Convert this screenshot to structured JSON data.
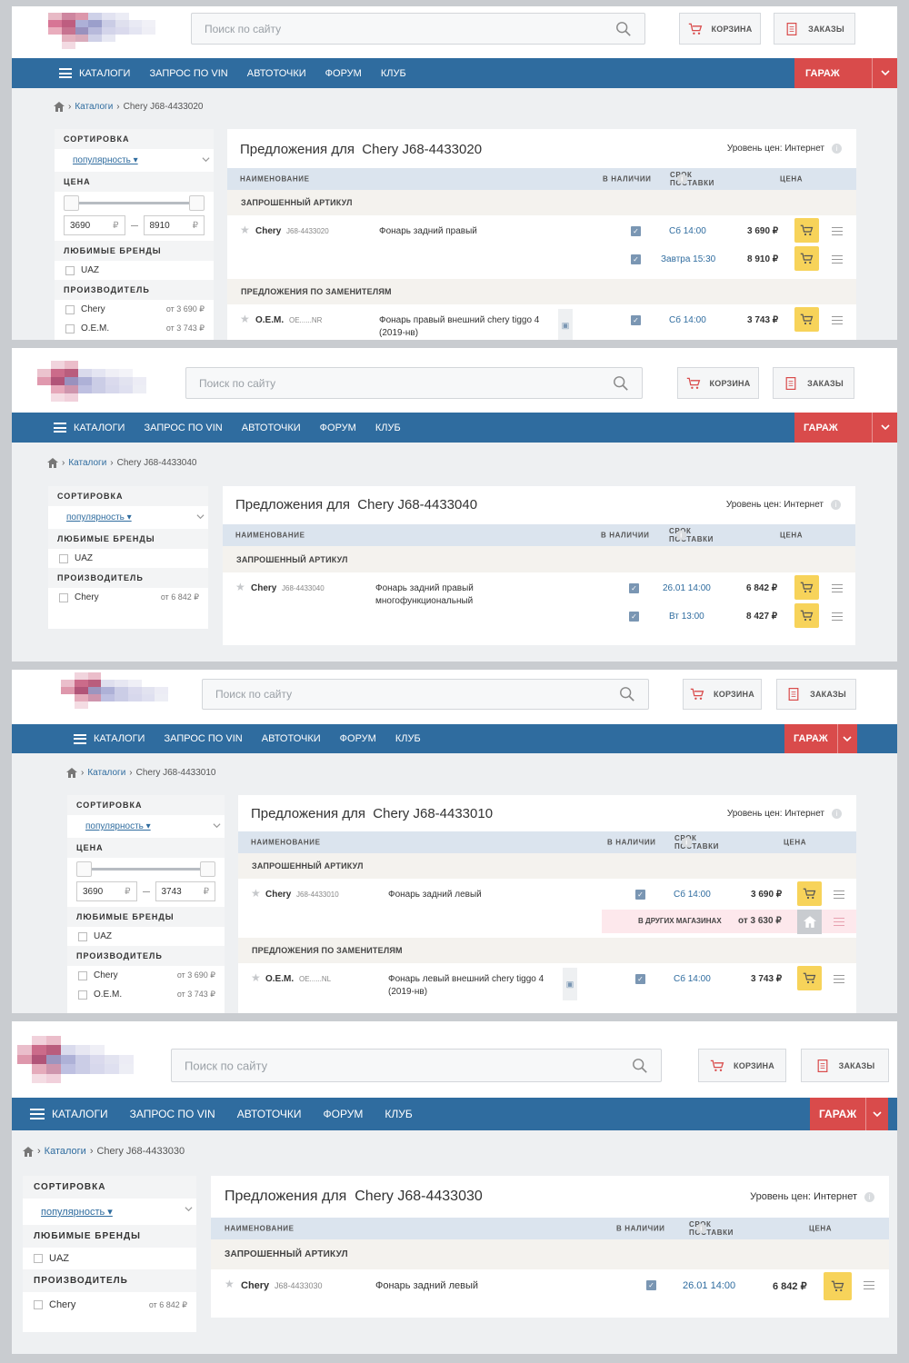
{
  "common": {
    "search_placeholder": "Поиск по сайту",
    "cart_label": "КОРЗИНА",
    "orders_label": "ЗАКАЗЫ",
    "nav": [
      "КАТАЛОГИ",
      "ЗАПРОС ПО VIN",
      "АВТОТОЧКИ",
      "ФОРУМ",
      "КЛУБ"
    ],
    "garage_label": "ГАРАЖ",
    "bc_catalogs": "Каталоги",
    "sort_title": "СОРТИРОВКА",
    "sort_value": "популярность ▾",
    "price_title": "ЦЕНА",
    "brands_title": "ЛЮБИМЫЕ БРЕНДЫ",
    "brand_uaz": "UAZ",
    "mfr_title": "ПРОИЗВОДИТЕЛЬ",
    "title_prefix": "Предложения для",
    "price_level": "Уровень цен: Интернет",
    "col_name": "НАИМЕНОВАНИЕ",
    "col_stock": "В НАЛИЧИИ",
    "col_delivery": "СРОК ПОСТАВКИ",
    "col_price": "ЦЕНА",
    "sec_requested": "ЗАПРОШЕННЫЙ АРТИКУЛ",
    "sec_substitutes": "ПРЕДЛОЖЕНИЯ ПО ЗАМЕНИТЕЛЯМ",
    "currency": "₽",
    "other_stores": "В ДРУГИХ МАГАЗИНАХ",
    "other_price": "от 3 630 ₽"
  },
  "panels": [
    {
      "part": "Chery J68-4433020",
      "price_min": "3690",
      "price_max": "8910",
      "manufacturers": [
        {
          "name": "Chery",
          "price": "от 3 690 ₽"
        },
        {
          "name": "O.E.M.",
          "price": "от 3 743 ₽"
        }
      ],
      "rows": [
        {
          "brand": "Chery",
          "art": "J68-4433020",
          "desc": "Фонарь задний правый",
          "delivery": "Сб 14:00",
          "price": "3 690 ₽"
        },
        {
          "delivery": "Завтра 15:30",
          "price": "8 910 ₽"
        },
        {
          "brand": "O.E.M.",
          "art": "OE......NR",
          "desc": "Фонарь правый внешний chery tiggo 4",
          "desc2": "(2019-нв)",
          "delivery": "Сб 14:00",
          "price": "3 743 ₽"
        }
      ]
    },
    {
      "part": "Chery J68-4433040",
      "manufacturers": [
        {
          "name": "Chery",
          "price": "от 6 842 ₽"
        }
      ],
      "rows": [
        {
          "brand": "Chery",
          "art": "J68-4433040",
          "desc": "Фонарь задний правый",
          "desc2": "многофункциональный",
          "delivery": "26.01 14:00",
          "price": "6 842 ₽"
        },
        {
          "delivery": "Вт 13:00",
          "price": "8 427 ₽"
        }
      ]
    },
    {
      "part": "Chery J68-4433010",
      "price_min": "3690",
      "price_max": "3743",
      "manufacturers": [
        {
          "name": "Chery",
          "price": "от 3 690 ₽"
        },
        {
          "name": "O.E.M.",
          "price": "от 3 743 ₽"
        }
      ],
      "rows": [
        {
          "brand": "Chery",
          "art": "J68-4433010",
          "desc": "Фонарь задний левый",
          "delivery": "Сб 14:00",
          "price": "3 690 ₽"
        },
        {
          "brand": "O.E.M.",
          "art": "OE......NL",
          "desc": "Фонарь левый внешний chery tiggo 4",
          "desc2": "(2019-нв)",
          "delivery": "Сб 14:00",
          "price": "3 743 ₽"
        }
      ]
    },
    {
      "part": "Chery J68-4433030",
      "manufacturers": [
        {
          "name": "Chery",
          "price": "от 6 842 ₽"
        }
      ],
      "rows": [
        {
          "brand": "Chery",
          "art": "J68-4433030",
          "desc": "Фонарь задний левый",
          "delivery": "26.01 14:00",
          "price": "6 842 ₽"
        }
      ]
    }
  ],
  "colors": {
    "nav": "#2f6c9f",
    "garage": "#d94b4b",
    "cart_button": "#f7d35a",
    "header_row": "#dbe4ee"
  }
}
